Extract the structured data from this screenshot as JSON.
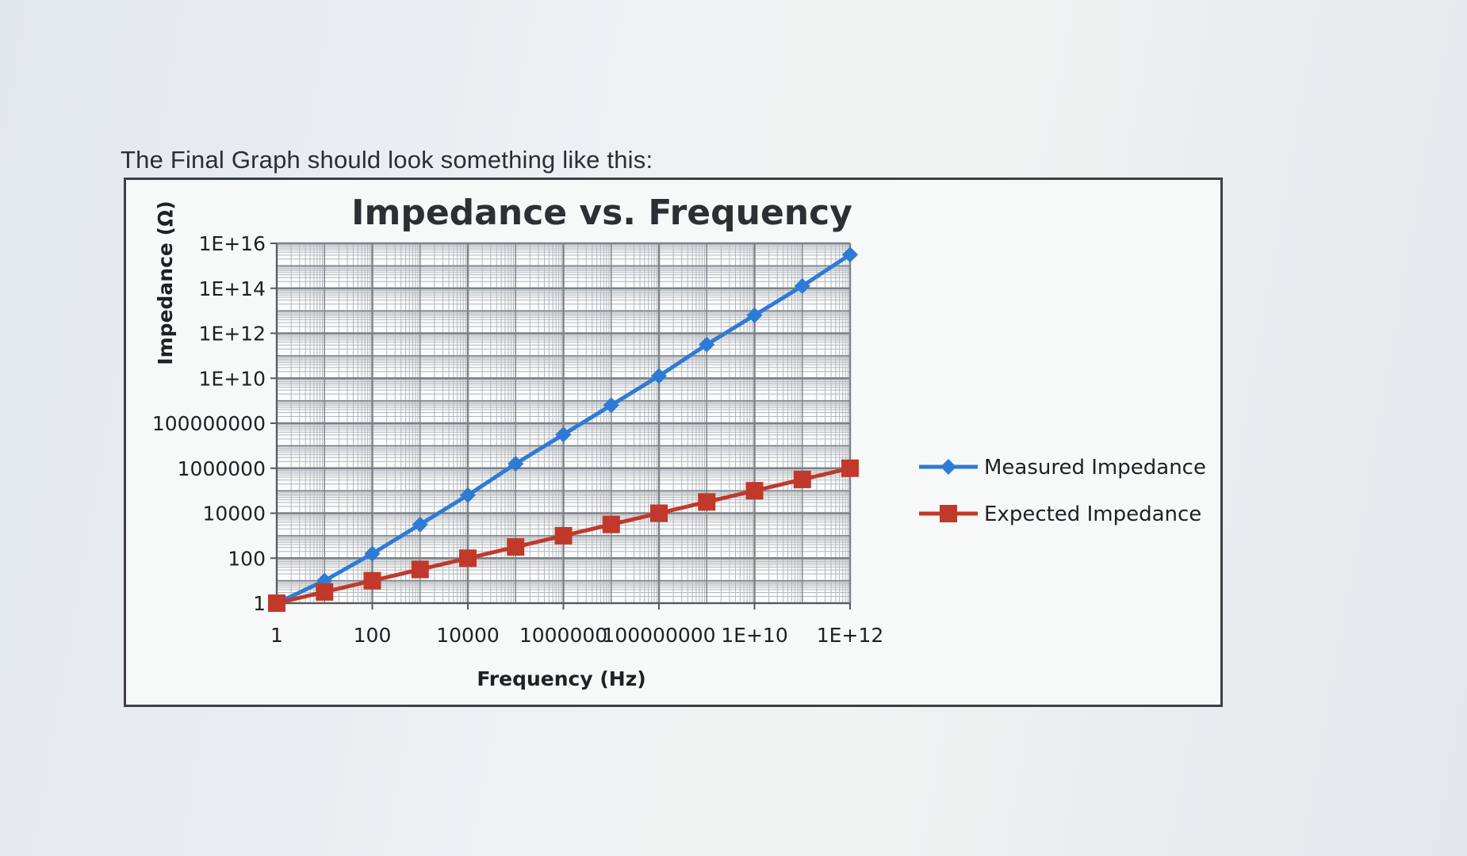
{
  "intro": {
    "text": "The Final Graph should look something like this:"
  },
  "chart_data": {
    "type": "line",
    "title": "Impedance vs. Frequency",
    "xlabel": "Frequency (Hz)",
    "ylabel": "Impedance (Ω)",
    "x_scale": "log",
    "y_scale": "log",
    "xlim": [
      1,
      1000000000000.0
    ],
    "ylim": [
      1,
      1e+16
    ],
    "x_ticks": [
      1,
      100,
      10000,
      1000000,
      100000000,
      10000000000.0,
      1000000000000.0
    ],
    "x_tick_labels": [
      "1",
      "100",
      "10000",
      "1000000",
      "100000000",
      "1E+10",
      "1E+12"
    ],
    "y_ticks": [
      1,
      100,
      10000,
      1000000,
      100000000,
      10000000000.0,
      1000000000000.0,
      100000000000000.0,
      1e+16
    ],
    "y_tick_labels": [
      "1",
      "100",
      "10000",
      "1000000",
      "100000000",
      "1E+10",
      "1E+12",
      "1E+14",
      "1E+16"
    ],
    "grid": true,
    "legend_position": "right",
    "x": [
      1,
      10,
      100,
      1000,
      10000,
      100000,
      1000000,
      10000000,
      100000000,
      1000000000,
      10000000000,
      100000000000,
      1000000000000
    ],
    "series": [
      {
        "name": "Measured Impedance",
        "color": "#2e7bd6",
        "marker": "diamond",
        "values": [
          1,
          10,
          158,
          3162,
          63096,
          1584893,
          31622777,
          630957344,
          12589254118,
          316227766016,
          6309573444801,
          125892541179416,
          3162277660168379
        ]
      },
      {
        "name": "Expected Impedance",
        "color": "#c0392b",
        "marker": "square",
        "values": [
          1,
          3.16,
          10,
          31.6,
          100,
          316,
          1000,
          3162,
          10000,
          31623,
          100000,
          316228,
          1000000
        ]
      }
    ]
  }
}
